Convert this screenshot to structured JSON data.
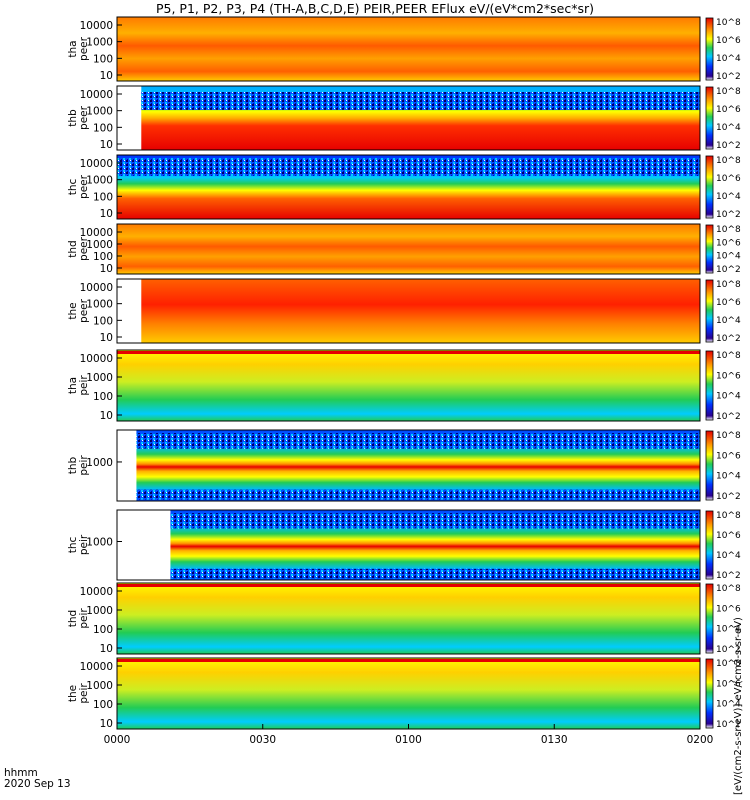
{
  "title": "P5, P1, P2, P3, P4 (TH-A,B,C,D,E) PEIR,PEER EFlux eV/(eV*cm2*sec*sr)",
  "footer": {
    "line1": "hhmm",
    "line2": "2020 Sep 13"
  },
  "colorbar_title": "[eV/(cm2-s-sr-eV)] eV/(cm2-s-sr-eV)",
  "colors": {
    "min": "#1a0080",
    "low": "#00c8ff",
    "mid": "#22cc55",
    "high": "#ffff00",
    "max": "#e60000"
  },
  "chart_data": {
    "type": "heatmap",
    "x_ticks": [
      "0000",
      "0030",
      "0100",
      "0130",
      "0200"
    ],
    "x_range": [
      "00:00",
      "02:00"
    ],
    "colorbar_ticks": [
      "10^2",
      "10^4",
      "10^6",
      "10^8"
    ],
    "panels": [
      {
        "probe": "tha",
        "product": "peer",
        "y_ticks": [
          "10000",
          "1000",
          "100",
          "10"
        ],
        "scale": "log",
        "data_start": "00:00"
      },
      {
        "probe": "thb",
        "product": "peer",
        "y_ticks": [
          "10000",
          "1000",
          "100",
          "10"
        ],
        "scale": "log",
        "data_start": "00:05"
      },
      {
        "probe": "thc",
        "product": "peer",
        "y_ticks": [
          "10000",
          "1000",
          "100",
          "10"
        ],
        "scale": "log",
        "data_start": "00:00"
      },
      {
        "probe": "thd",
        "product": "peer",
        "y_ticks": [
          "10000",
          "1000",
          "100",
          "10"
        ],
        "scale": "log",
        "data_start": "00:00"
      },
      {
        "probe": "the",
        "product": "peer",
        "y_ticks": [
          "10000",
          "1000",
          "100",
          "10"
        ],
        "scale": "log",
        "data_start": "00:05"
      },
      {
        "probe": "tha",
        "product": "peir",
        "y_ticks": [
          "10000",
          "1000",
          "100",
          "10"
        ],
        "scale": "log",
        "data_start": "00:00"
      },
      {
        "probe": "thb",
        "product": "peir",
        "y_ticks": [
          "1000"
        ],
        "scale": "log",
        "data_start": "00:04"
      },
      {
        "probe": "thc",
        "product": "peir",
        "y_ticks": [
          "1000"
        ],
        "scale": "log",
        "data_start": "00:11"
      },
      {
        "probe": "thd",
        "product": "peir",
        "y_ticks": [
          "10000",
          "1000",
          "100",
          "10"
        ],
        "scale": "log",
        "data_start": "00:00"
      },
      {
        "probe": "the",
        "product": "peir",
        "y_ticks": [
          "10000",
          "1000",
          "100",
          "10"
        ],
        "scale": "log",
        "data_start": "00:00"
      }
    ]
  }
}
